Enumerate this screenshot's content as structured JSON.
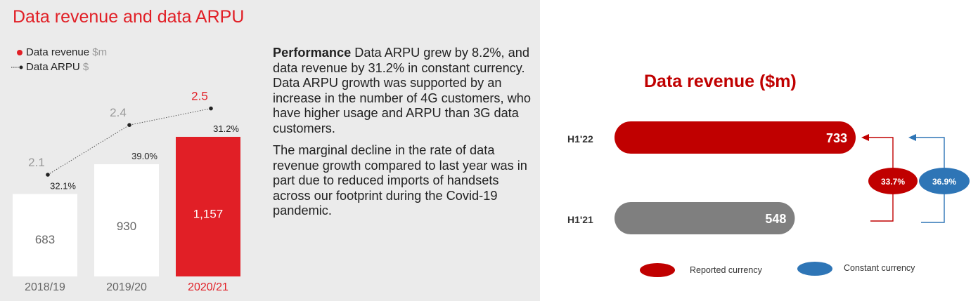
{
  "chart_data": [
    {
      "type": "bar",
      "title": "Data revenue and data ARPU",
      "legend": [
        {
          "label": "Data revenue",
          "unit": "$m",
          "color": "#e11f26",
          "marker": "dot"
        },
        {
          "label": "Data ARPU",
          "unit": "$",
          "color": "#222222",
          "marker": "dotted-line"
        }
      ],
      "categories": [
        "2018/19",
        "2019/20",
        "2020/21"
      ],
      "series": [
        {
          "name": "Data revenue",
          "values": [
            683,
            930,
            1157
          ],
          "value_labels": [
            "683",
            "930",
            "1,157"
          ],
          "colors": [
            "#ffffff",
            "#ffffff",
            "#e11f26"
          ]
        },
        {
          "name": "Data ARPU",
          "type": "line",
          "values": [
            2.1,
            2.4,
            2.5
          ],
          "value_labels": [
            "2.1",
            "2.4",
            "2.5"
          ]
        }
      ],
      "growth_labels": [
        "32.1%",
        "39.0%",
        "31.2%"
      ],
      "highlight_color": "#e11f26",
      "ylim": [
        0,
        1400
      ]
    },
    {
      "type": "bar",
      "orientation": "horizontal",
      "title": "Data revenue ($m)",
      "categories": [
        "H1'22",
        "H1'21"
      ],
      "values": [
        733,
        548
      ],
      "value_labels": [
        "733",
        "548"
      ],
      "bar_colors": [
        "#c00000",
        "#7f7f7f"
      ],
      "growth": [
        {
          "label": "33.7%",
          "color": "#c00000",
          "legend": "Reported currency"
        },
        {
          "label": "36.9%",
          "color": "#2e75b6",
          "legend": "Constant currency"
        }
      ],
      "xlim": [
        0,
        800
      ]
    }
  ],
  "commentary": {
    "heading": "Performance",
    "paragraph1": " Data ARPU grew by 8.2%, and data revenue by 31.2% in constant currency. Data ARPU growth was supported by an increase in the number of 4G customers, who have higher usage and ARPU than 3G data customers.",
    "paragraph2": "The marginal decline in the rate of data revenue growth compared to last year was in part due to reduced imports of handsets across our footprint during the Covid-19 pandemic."
  }
}
